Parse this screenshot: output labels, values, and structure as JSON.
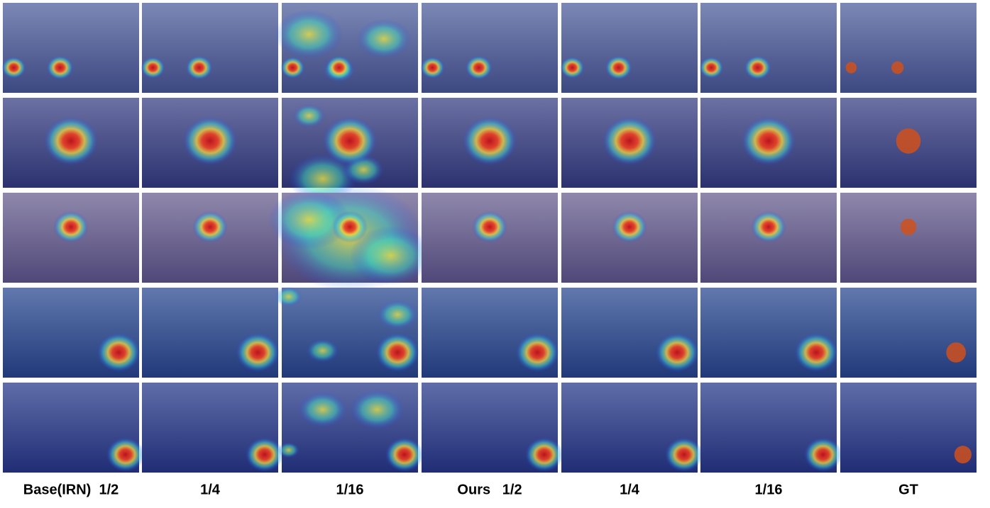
{
  "columns": [
    "Base(IRN)  1/2",
    "1/4",
    "1/16",
    "Ours   1/2",
    "1/4",
    "1/16",
    "GT"
  ]
}
